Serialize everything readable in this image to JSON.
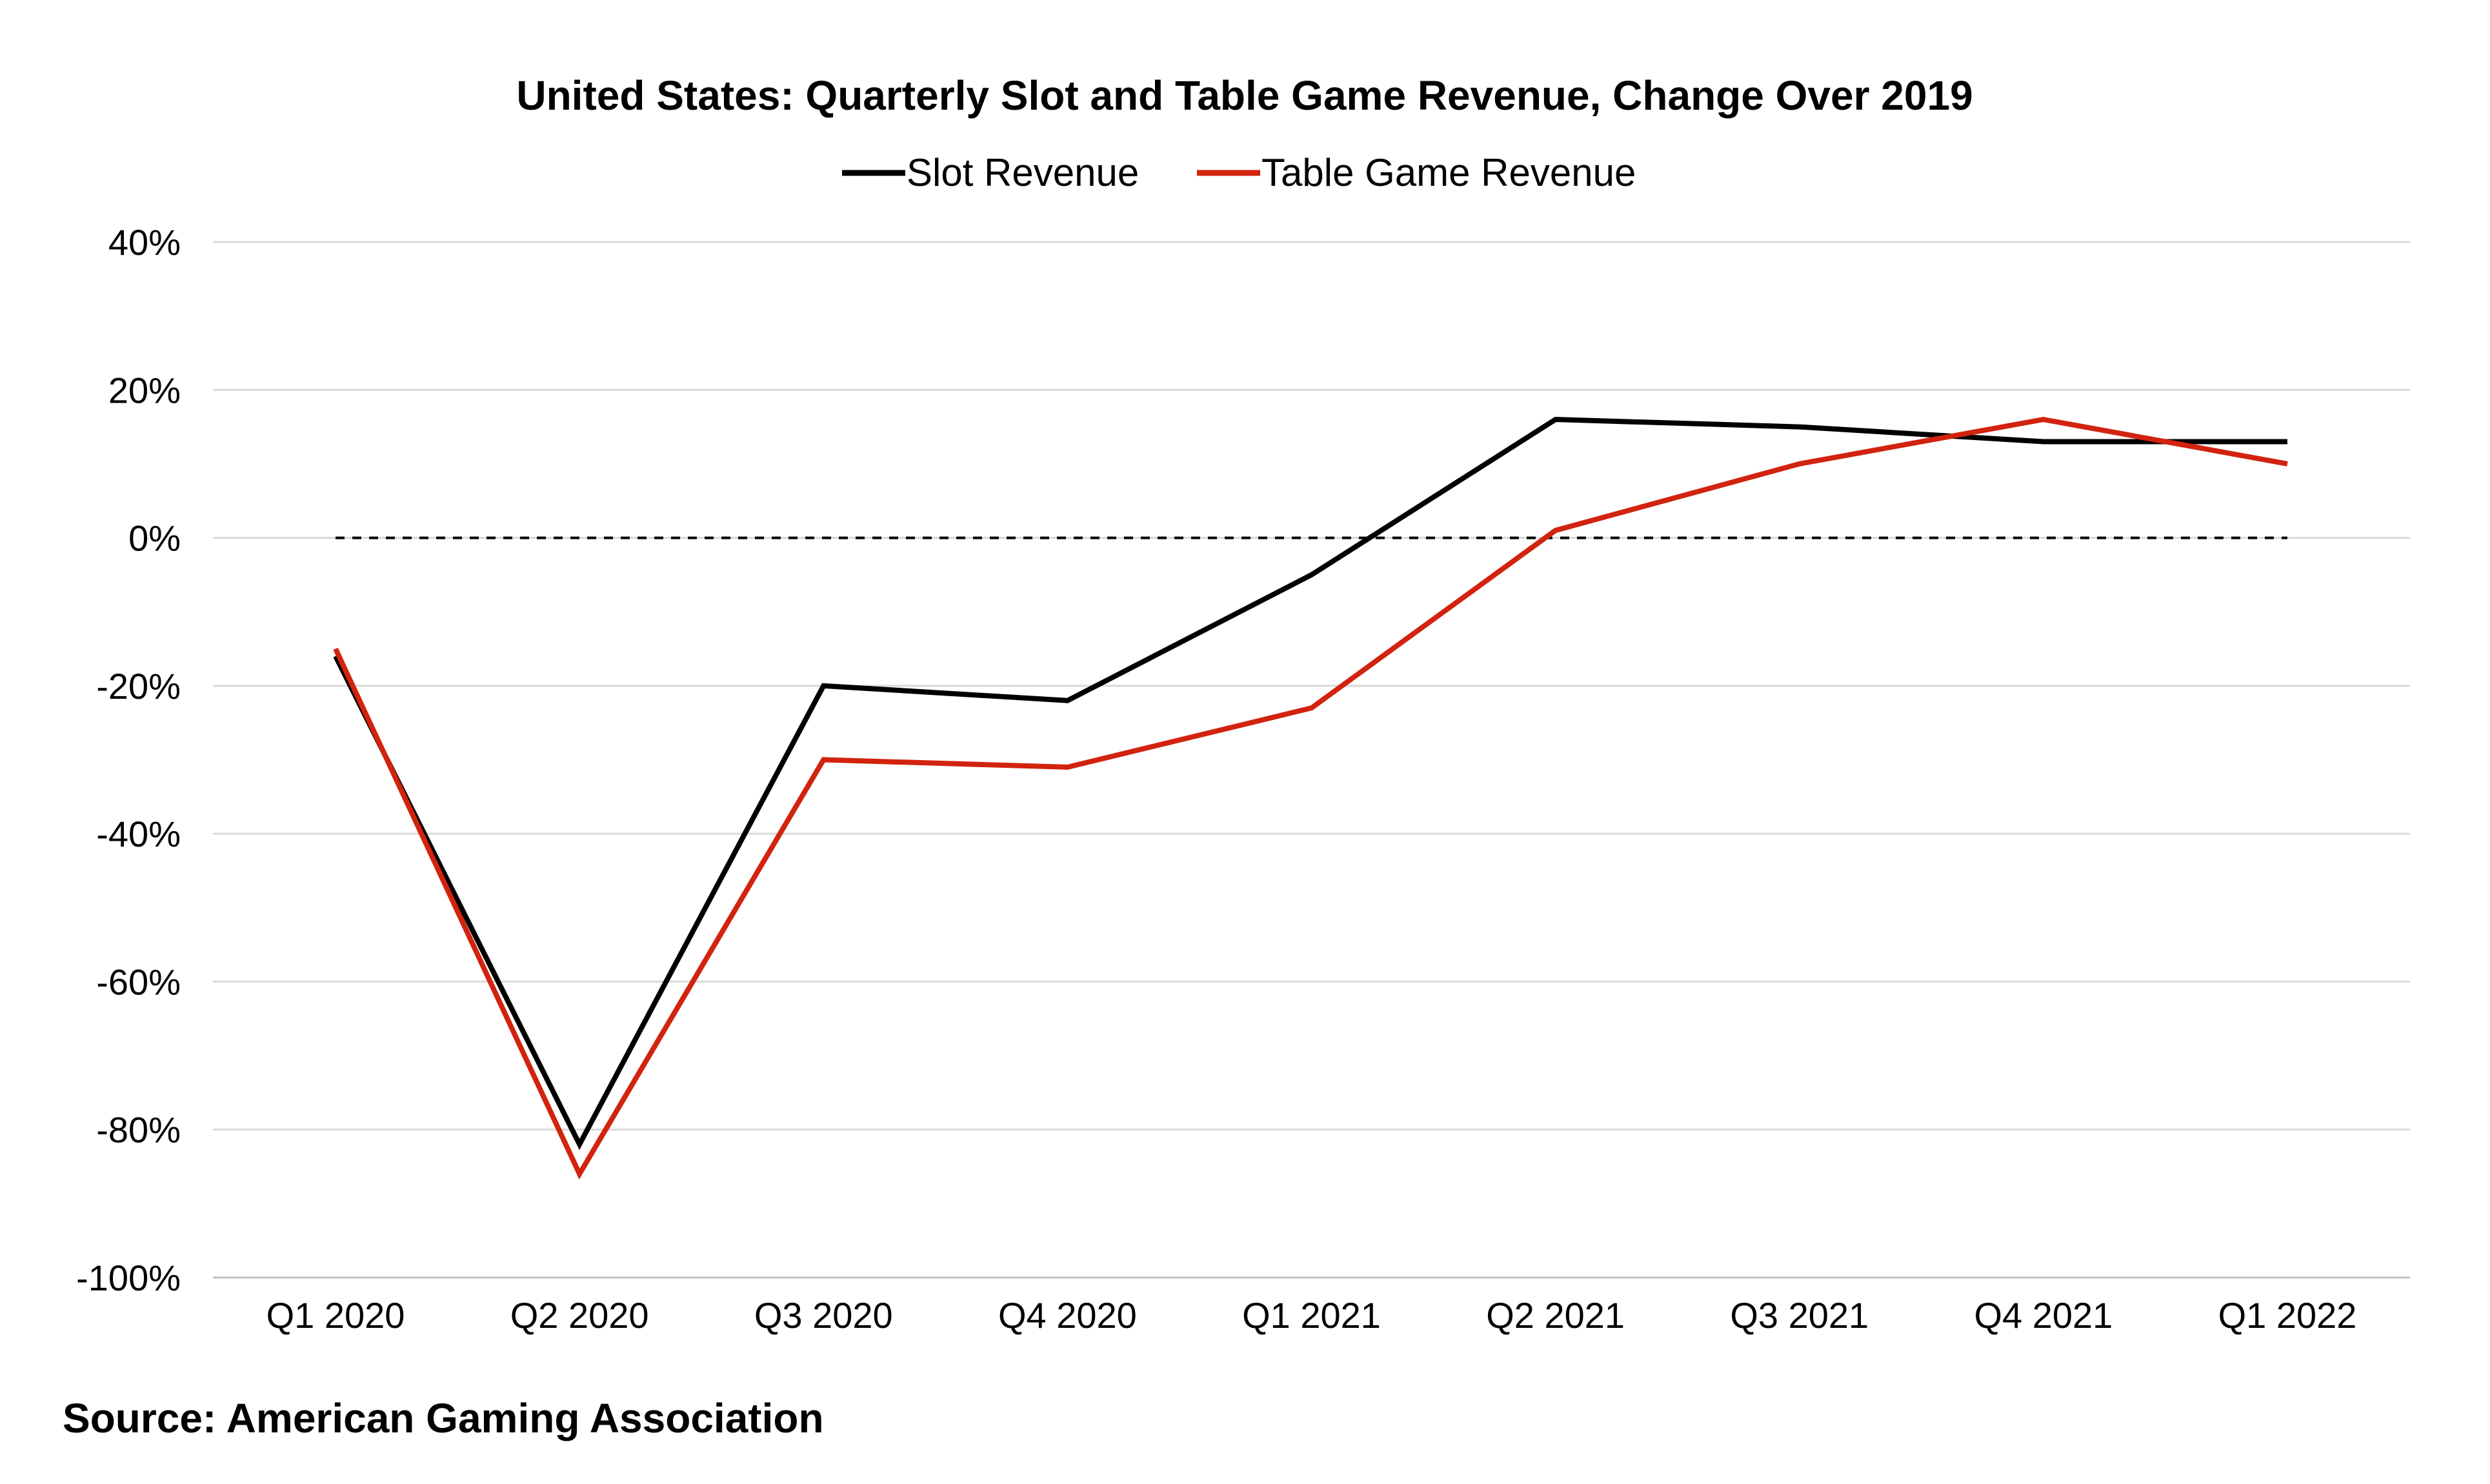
{
  "chart_data": {
    "type": "line",
    "title": "United States: Quarterly Slot and Table Game Revenue, Change Over 2019",
    "xlabel": "",
    "ylabel": "",
    "categories": [
      "Q1 2020",
      "Q2 2020",
      "Q3 2020",
      "Q4 2020",
      "Q1 2021",
      "Q2 2021",
      "Q3 2021",
      "Q4 2021",
      "Q1 2022"
    ],
    "series": [
      {
        "name": "Slot Revenue",
        "color": "#000000",
        "values": [
          -16,
          -82,
          -20,
          -22,
          -5,
          16,
          15,
          13,
          13
        ]
      },
      {
        "name": "Table Game Revenue",
        "color": "#d2230f",
        "values": [
          -15,
          -86,
          -30,
          -31,
          -23,
          1,
          10,
          16,
          10
        ]
      }
    ],
    "ylim": [
      -100,
      40
    ],
    "yticks": [
      40,
      20,
      0,
      -20,
      -40,
      -60,
      -80,
      -100
    ],
    "ytick_labels": [
      "40%",
      "20%",
      "0%",
      "-20%",
      "-40%",
      "-60%",
      "-80%",
      "-100%"
    ],
    "reference_line": {
      "value": 0,
      "style": "dashed"
    },
    "grid": true,
    "legend_position": "top-center",
    "source": "Source: American Gaming Association"
  }
}
